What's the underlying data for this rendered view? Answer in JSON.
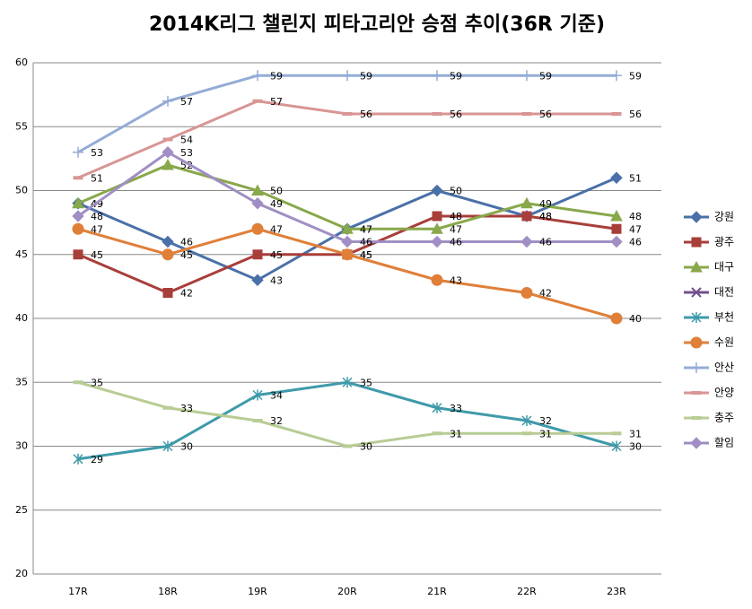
{
  "chart_data": {
    "type": "line",
    "title": "2014K리그 챌린지 피타고리안 승점 추이(36R 기준)",
    "categories": [
      "17R",
      "18R",
      "19R",
      "20R",
      "21R",
      "22R",
      "23R"
    ],
    "ylim": [
      20,
      60
    ],
    "yticks": [
      20,
      25,
      30,
      35,
      40,
      45,
      50,
      55,
      60
    ],
    "grid": true,
    "legend": "right",
    "series": [
      {
        "name": "강원",
        "color": "#4a70a8",
        "marker": "diamond",
        "values": [
          49,
          46,
          43,
          47,
          50,
          48,
          51
        ]
      },
      {
        "name": "광주",
        "color": "#a83e3a",
        "marker": "square",
        "values": [
          45,
          42,
          45,
          45,
          48,
          48,
          47
        ]
      },
      {
        "name": "대구",
        "color": "#88a84a",
        "marker": "triangle",
        "values": [
          49,
          52,
          50,
          47,
          47,
          49,
          48
        ]
      },
      {
        "name": "대전",
        "color": "#70508c",
        "marker": "x",
        "values": [
          null,
          null,
          null,
          null,
          null,
          null,
          null
        ]
      },
      {
        "name": "부천",
        "color": "#3e9aaa",
        "marker": "star",
        "values": [
          29,
          30,
          34,
          35,
          33,
          32,
          30
        ]
      },
      {
        "name": "수원",
        "color": "#e07f38",
        "marker": "circle",
        "values": [
          47,
          45,
          47,
          45,
          43,
          42,
          40
        ]
      },
      {
        "name": "안산",
        "color": "#94acd6",
        "marker": "plus",
        "values": [
          53,
          57,
          59,
          59,
          59,
          59,
          59
        ]
      },
      {
        "name": "안양",
        "color": "#d89594",
        "marker": "dash",
        "values": [
          51,
          54,
          57,
          56,
          56,
          56,
          56
        ]
      },
      {
        "name": "충주",
        "color": "#b8cc94",
        "marker": "dash",
        "values": [
          35,
          33,
          32,
          30,
          31,
          31,
          31
        ]
      },
      {
        "name": "할임",
        "color": "#a08ec4",
        "marker": "diamond",
        "values": [
          48,
          53,
          49,
          46,
          46,
          46,
          46
        ]
      }
    ]
  }
}
